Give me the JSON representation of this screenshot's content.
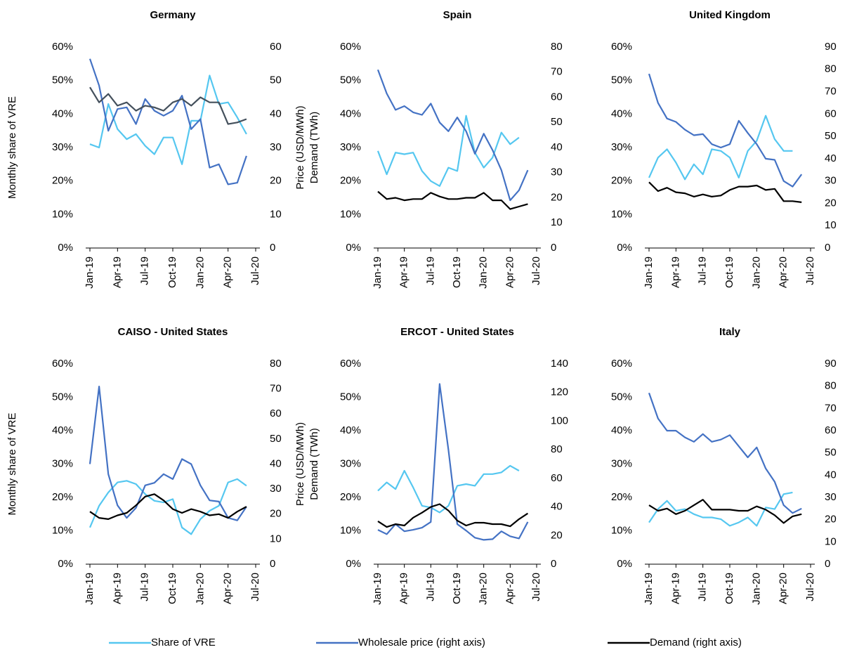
{
  "chart_data": [
    {
      "type": "line",
      "title": "Germany",
      "ylabel": "Monthly share of VRE",
      "y2label": [
        "Price (USD/MWh)",
        "Demand (TWh)"
      ],
      "categories": [
        "Jan-19",
        null,
        null,
        "Apr-19",
        null,
        null,
        "Jul-19",
        null,
        null,
        "Oct-19",
        null,
        null,
        "Jan-20",
        null,
        null,
        "Apr-20",
        null,
        null,
        "Jul-20"
      ],
      "ylim": [
        0,
        60
      ],
      "yticks": [
        {
          "value": 0,
          "label": "0%"
        },
        {
          "value": 10,
          "label": "10%"
        },
        {
          "value": 20,
          "label": "20%"
        },
        {
          "value": 30,
          "label": "30%"
        },
        {
          "value": 40,
          "label": "40%"
        },
        {
          "value": 50,
          "label": "50%"
        },
        {
          "value": 60,
          "label": "60%"
        }
      ],
      "y2lim": [
        0,
        60
      ],
      "y2ticks": [
        0,
        10,
        20,
        30,
        40,
        50,
        60
      ],
      "series": [
        {
          "color": "#55c7f0",
          "values": [
            31,
            30,
            43,
            35.5,
            32.5,
            34,
            30.5,
            28,
            33,
            33,
            25,
            38,
            38,
            51.5,
            43,
            43.5,
            39,
            34,
            null
          ]
        },
        {
          "color": "#4472c4",
          "axis": "y2",
          "values": [
            56.5,
            48.5,
            35,
            41.5,
            42,
            37,
            44.5,
            41,
            39.5,
            41,
            45.5,
            35.5,
            38.5,
            24,
            25,
            19,
            19.5,
            27.5,
            null
          ]
        },
        {
          "color": "#44505c",
          "axis": "y2",
          "values": [
            48,
            43.5,
            46,
            42.5,
            43.5,
            41,
            42.5,
            42,
            41,
            43.5,
            44.5,
            42.5,
            45,
            43.5,
            43.5,
            37,
            37.5,
            38.5,
            null
          ]
        }
      ]
    },
    {
      "type": "line",
      "title": "Spain",
      "categories": [
        "Jan-19",
        null,
        null,
        "Apr-19",
        null,
        null,
        "Jul-19",
        null,
        null,
        "Oct-19",
        null,
        null,
        "Jan-20",
        null,
        null,
        "Apr-20",
        null,
        null,
        "Jul-20"
      ],
      "ylim": [
        0,
        60
      ],
      "yticks": [
        {
          "value": 0,
          "label": "0%"
        },
        {
          "value": 10,
          "label": "10%"
        },
        {
          "value": 20,
          "label": "20%"
        },
        {
          "value": 30,
          "label": "30%"
        },
        {
          "value": 40,
          "label": "40%"
        },
        {
          "value": 50,
          "label": "50%"
        },
        {
          "value": 60,
          "label": "60%"
        }
      ],
      "y2lim": [
        0,
        80
      ],
      "y2ticks": [
        0,
        10,
        20,
        30,
        40,
        50,
        60,
        70,
        80
      ],
      "series": [
        {
          "color": "#55c7f0",
          "values": [
            29,
            22,
            28.5,
            28,
            28.5,
            23,
            20,
            18.5,
            24,
            23,
            39.5,
            28.5,
            24,
            27,
            34.5,
            31,
            33,
            null,
            null
          ]
        },
        {
          "color": "#4472c4",
          "axis": "y2",
          "values": [
            71,
            61.5,
            55,
            56.5,
            54,
            53,
            57.5,
            50,
            46.5,
            52,
            46.5,
            37.5,
            45.5,
            39,
            31,
            19,
            23,
            31,
            null
          ]
        },
        {
          "color": "#000000",
          "axis": "y2",
          "values": [
            22.5,
            19.5,
            20,
            19,
            19.5,
            19.5,
            22,
            20.5,
            19.5,
            19.5,
            20,
            20,
            22,
            19,
            19,
            15.5,
            16.5,
            17.5,
            null
          ]
        }
      ]
    },
    {
      "type": "line",
      "title": "United Kingdom",
      "categories": [
        "Jan-19",
        null,
        null,
        "Apr-19",
        null,
        null,
        "Jul-19",
        null,
        null,
        "Oct-19",
        null,
        null,
        "Jan-20",
        null,
        null,
        "Apr-20",
        null,
        null,
        "Jul-20"
      ],
      "ylim": [
        0,
        60
      ],
      "yticks": [
        {
          "value": 0,
          "label": "0%"
        },
        {
          "value": 10,
          "label": "10%"
        },
        {
          "value": 20,
          "label": "20%"
        },
        {
          "value": 30,
          "label": "30%"
        },
        {
          "value": 40,
          "label": "40%"
        },
        {
          "value": 50,
          "label": "50%"
        },
        {
          "value": 60,
          "label": "60%"
        }
      ],
      "y2lim": [
        0,
        90
      ],
      "y2ticks": [
        0,
        10,
        20,
        30,
        40,
        50,
        60,
        70,
        80,
        90
      ],
      "series": [
        {
          "color": "#55c7f0",
          "values": [
            21,
            27,
            29.5,
            25.5,
            20.5,
            25,
            22,
            29.5,
            29,
            27,
            21,
            29,
            32,
            39.5,
            32.5,
            29,
            29,
            null,
            null
          ]
        },
        {
          "color": "#4472c4",
          "axis": "y2",
          "values": [
            78,
            65,
            58,
            56.5,
            53,
            50.5,
            51,
            46.5,
            45,
            46.5,
            57,
            51.5,
            46.5,
            40,
            39.5,
            30,
            27.5,
            33,
            null
          ]
        },
        {
          "color": "#000000",
          "axis": "y2",
          "values": [
            29.5,
            25.5,
            27,
            25,
            24.5,
            23,
            24,
            23,
            23.5,
            26,
            27.5,
            27.5,
            28,
            26,
            26.5,
            21,
            21,
            20.5,
            null
          ]
        }
      ]
    },
    {
      "type": "line",
      "title": "CAISO - United States",
      "ylabel": "Monthly share of VRE",
      "y2label": [
        "Price (USD/MWh)",
        "Demand (TWh)"
      ],
      "categories": [
        "Jan-19",
        null,
        null,
        "Apr-19",
        null,
        null,
        "Jul-19",
        null,
        null,
        "Oct-19",
        null,
        null,
        "Jan-20",
        null,
        null,
        "Apr-20",
        null,
        null,
        "Jul-20"
      ],
      "ylim": [
        0,
        60
      ],
      "yticks": [
        {
          "value": 0,
          "label": "0%"
        },
        {
          "value": 10,
          "label": "10%"
        },
        {
          "value": 20,
          "label": "20%"
        },
        {
          "value": 30,
          "label": "30%"
        },
        {
          "value": 40,
          "label": "40%"
        },
        {
          "value": 50,
          "label": "50%"
        },
        {
          "value": 60,
          "label": "60%"
        }
      ],
      "y2lim": [
        0,
        80
      ],
      "y2ticks": [
        0,
        10,
        20,
        30,
        40,
        50,
        60,
        70,
        80
      ],
      "series": [
        {
          "color": "#55c7f0",
          "values": [
            11,
            17.5,
            21.5,
            24.5,
            25,
            24,
            21,
            19,
            18.5,
            19.5,
            11,
            9,
            13.5,
            16,
            17.5,
            24.5,
            25.5,
            23.5,
            null
          ]
        },
        {
          "color": "#4472c4",
          "axis": "y2",
          "values": [
            40,
            71,
            36,
            23.5,
            18.5,
            22.5,
            31.5,
            32.5,
            36,
            34,
            42,
            40,
            31.5,
            25.5,
            25,
            18.5,
            17.5,
            23,
            null
          ]
        },
        {
          "color": "#000000",
          "axis": "y2",
          "values": [
            21,
            18.5,
            18,
            19.5,
            20.5,
            23.5,
            27,
            28,
            25.5,
            22,
            20.5,
            22,
            21,
            19.5,
            20,
            18.5,
            21,
            23,
            null
          ]
        }
      ]
    },
    {
      "type": "line",
      "title": "ERCOT - United States",
      "categories": [
        "Jan-19",
        null,
        null,
        "Apr-19",
        null,
        null,
        "Jul-19",
        null,
        null,
        "Oct-19",
        null,
        null,
        "Jan-20",
        null,
        null,
        "Apr-20",
        null,
        null,
        "Jul-20"
      ],
      "ylim": [
        0,
        60
      ],
      "yticks": [
        {
          "value": 0,
          "label": "0%"
        },
        {
          "value": 10,
          "label": "10%"
        },
        {
          "value": 20,
          "label": "20%"
        },
        {
          "value": 30,
          "label": "30%"
        },
        {
          "value": 40,
          "label": "40%"
        },
        {
          "value": 50,
          "label": "50%"
        },
        {
          "value": 60,
          "label": "60%"
        }
      ],
      "y2lim": [
        0,
        140
      ],
      "y2ticks": [
        0,
        20,
        40,
        60,
        80,
        100,
        120,
        140
      ],
      "series": [
        {
          "color": "#55c7f0",
          "values": [
            22,
            24.5,
            22.5,
            28,
            23,
            17.5,
            17,
            15.5,
            17.5,
            23.5,
            24,
            23.5,
            27,
            27,
            27.5,
            29.5,
            28,
            null,
            null
          ]
        },
        {
          "color": "#4472c4",
          "axis": "y2",
          "values": [
            24,
            21,
            28,
            23,
            24,
            25.5,
            29.5,
            126,
            80,
            28,
            23.5,
            18.5,
            17,
            17.5,
            23,
            19.5,
            18,
            29.5,
            null
          ]
        },
        {
          "color": "#000000",
          "axis": "y2",
          "values": [
            30,
            26,
            28,
            27,
            32.5,
            36,
            40,
            42,
            37.5,
            30.5,
            27,
            29,
            29,
            28,
            28,
            26.5,
            31.5,
            35.5,
            null
          ]
        }
      ]
    },
    {
      "type": "line",
      "title": "Italy",
      "categories": [
        "Jan-19",
        null,
        null,
        "Apr-19",
        null,
        null,
        "Jul-19",
        null,
        null,
        "Oct-19",
        null,
        null,
        "Jan-20",
        null,
        null,
        "Apr-20",
        null,
        null,
        "Jul-20"
      ],
      "ylim": [
        0,
        60
      ],
      "yticks": [
        {
          "value": 0,
          "label": "0%"
        },
        {
          "value": 10,
          "label": "10%"
        },
        {
          "value": 20,
          "label": "20%"
        },
        {
          "value": 30,
          "label": "30%"
        },
        {
          "value": 40,
          "label": "40%"
        },
        {
          "value": 50,
          "label": "50%"
        },
        {
          "value": 60,
          "label": "60%"
        }
      ],
      "y2lim": [
        0,
        90
      ],
      "y2ticks": [
        0,
        10,
        20,
        30,
        40,
        50,
        60,
        70,
        80,
        90
      ],
      "series": [
        {
          "color": "#55c7f0",
          "values": [
            12.5,
            16.5,
            19,
            16,
            16.5,
            15,
            14,
            14,
            13.5,
            11.5,
            12.5,
            14,
            11.5,
            17,
            16.5,
            21,
            21.5,
            null,
            null
          ]
        },
        {
          "color": "#4472c4",
          "axis": "y2",
          "values": [
            77,
            65.5,
            60,
            60,
            57,
            55,
            58.5,
            55,
            56,
            58,
            53,
            48,
            52.5,
            43,
            37,
            26.5,
            23,
            25,
            null
          ]
        },
        {
          "color": "#000000",
          "axis": "y2",
          "values": [
            26.5,
            24,
            25,
            22.5,
            24,
            26.5,
            29,
            24.5,
            24.5,
            24.5,
            24,
            24,
            26,
            24.5,
            22,
            18.5,
            21.5,
            22.5,
            null
          ]
        }
      ]
    }
  ],
  "legend": [
    {
      "name": "Share of VRE",
      "color": "#55c7f0"
    },
    {
      "name": "Wholesale price (right axis)",
      "color": "#4472c4"
    },
    {
      "name": "Demand (right axis)",
      "color": "#000000"
    }
  ]
}
